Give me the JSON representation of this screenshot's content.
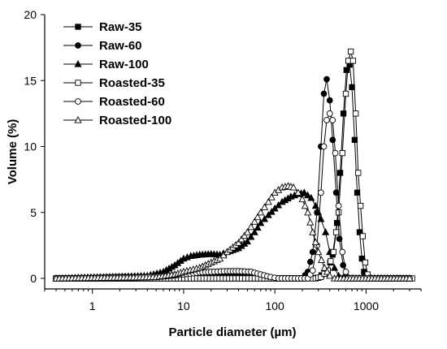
{
  "chart_data": {
    "type": "line",
    "xlabel": "Particle diameter (µm)",
    "ylabel": "Volume (%)",
    "xscale": "log",
    "xlim": [
      0.3,
      4000
    ],
    "ylim": [
      0,
      20
    ],
    "x_ticks": [
      {
        "value": 1,
        "label": "1"
      },
      {
        "value": 10,
        "label": "10"
      },
      {
        "value": 100,
        "label": "100"
      },
      {
        "value": 1000,
        "label": "1000"
      }
    ],
    "y_ticks": [
      {
        "value": 0,
        "label": "0"
      },
      {
        "value": 5,
        "label": "5"
      },
      {
        "value": 10,
        "label": "10"
      },
      {
        "value": 15,
        "label": "15"
      },
      {
        "value": 20,
        "label": "20"
      }
    ],
    "legend_position": "top-left",
    "grid": false,
    "series": [
      {
        "name": "Raw-35",
        "marker": "square-filled",
        "points": [
          [
            0.4,
            0
          ],
          [
            200,
            0
          ],
          [
            300,
            0.05
          ],
          [
            380,
            0.6
          ],
          [
            430,
            1.8
          ],
          [
            480,
            4.2
          ],
          [
            520,
            8
          ],
          [
            565,
            12.5
          ],
          [
            610,
            15.8
          ],
          [
            660,
            16.2
          ],
          [
            700,
            14.5
          ],
          [
            750,
            10.5
          ],
          [
            800,
            6.5
          ],
          [
            850,
            3.5
          ],
          [
            900,
            1.5
          ],
          [
            950,
            0.5
          ],
          [
            1000,
            0.1
          ],
          [
            1100,
            0
          ],
          [
            3000,
            0
          ]
        ]
      },
      {
        "name": "Raw-60",
        "marker": "circle-filled",
        "points": [
          [
            0.4,
            0
          ],
          [
            3,
            0
          ],
          [
            6,
            0.1
          ],
          [
            10,
            0.3
          ],
          [
            15,
            0.4
          ],
          [
            20,
            0.45
          ],
          [
            30,
            0.45
          ],
          [
            45,
            0.4
          ],
          [
            60,
            0.3
          ],
          [
            80,
            0.1
          ],
          [
            100,
            0
          ],
          [
            200,
            0
          ],
          [
            230,
            0.5
          ],
          [
            260,
            2
          ],
          [
            290,
            5
          ],
          [
            320,
            10
          ],
          [
            345,
            14
          ],
          [
            370,
            15.1
          ],
          [
            400,
            13.5
          ],
          [
            430,
            10.5
          ],
          [
            470,
            6.5
          ],
          [
            510,
            3
          ],
          [
            560,
            1
          ],
          [
            600,
            0.2
          ],
          [
            650,
            0
          ],
          [
            3000,
            0
          ]
        ]
      },
      {
        "name": "Raw-100",
        "marker": "triangle-filled",
        "points": [
          [
            0.4,
            0
          ],
          [
            4,
            0.2
          ],
          [
            6,
            0.5
          ],
          [
            8,
            1
          ],
          [
            10,
            1.5
          ],
          [
            12,
            1.7
          ],
          [
            15,
            1.8
          ],
          [
            20,
            1.85
          ],
          [
            25,
            1.8
          ],
          [
            30,
            2
          ],
          [
            40,
            2.3
          ],
          [
            50,
            2.8
          ],
          [
            60,
            3.5
          ],
          [
            70,
            4.2
          ],
          [
            85,
            4.8
          ],
          [
            100,
            5.3
          ],
          [
            120,
            5.8
          ],
          [
            150,
            6.2
          ],
          [
            180,
            6.4
          ],
          [
            210,
            6.5
          ],
          [
            250,
            6.1
          ],
          [
            280,
            5.5
          ],
          [
            320,
            4.5
          ],
          [
            360,
            3.5
          ],
          [
            400,
            2
          ],
          [
            450,
            0.8
          ],
          [
            500,
            0.2
          ],
          [
            550,
            0
          ],
          [
            3000,
            0
          ]
        ]
      },
      {
        "name": "Roasted-35",
        "marker": "square-open",
        "points": [
          [
            0.4,
            0
          ],
          [
            280,
            0
          ],
          [
            320,
            0.1
          ],
          [
            380,
            0.6
          ],
          [
            440,
            2
          ],
          [
            500,
            5
          ],
          [
            550,
            9.5
          ],
          [
            600,
            14
          ],
          [
            640,
            16.5
          ],
          [
            680,
            17.2
          ],
          [
            720,
            16.5
          ],
          [
            770,
            12.5
          ],
          [
            820,
            8
          ],
          [
            870,
            5.5
          ],
          [
            920,
            3.2
          ],
          [
            980,
            1.2
          ],
          [
            1040,
            0.3
          ],
          [
            1100,
            0
          ],
          [
            3200,
            0
          ]
        ]
      },
      {
        "name": "Roasted-60",
        "marker": "circle-open",
        "points": [
          [
            0.4,
            0
          ],
          [
            3,
            0.05
          ],
          [
            6,
            0.15
          ],
          [
            10,
            0.3
          ],
          [
            15,
            0.45
          ],
          [
            20,
            0.5
          ],
          [
            30,
            0.55
          ],
          [
            40,
            0.55
          ],
          [
            55,
            0.5
          ],
          [
            70,
            0.3
          ],
          [
            90,
            0.1
          ],
          [
            110,
            0
          ],
          [
            230,
            0
          ],
          [
            260,
            0.6
          ],
          [
            290,
            2.5
          ],
          [
            320,
            6.5
          ],
          [
            345,
            10
          ],
          [
            370,
            12
          ],
          [
            400,
            12.5
          ],
          [
            430,
            12
          ],
          [
            460,
            9.5
          ],
          [
            500,
            5.5
          ],
          [
            550,
            2
          ],
          [
            600,
            0.5
          ],
          [
            650,
            0
          ],
          [
            3000,
            0
          ]
        ]
      },
      {
        "name": "Roasted-100",
        "marker": "triangle-open",
        "points": [
          [
            0.4,
            0
          ],
          [
            5,
            0.1
          ],
          [
            8,
            0.3
          ],
          [
            10,
            0.5
          ],
          [
            15,
            0.8
          ],
          [
            20,
            1.2
          ],
          [
            25,
            1.5
          ],
          [
            30,
            2
          ],
          [
            40,
            2.7
          ],
          [
            50,
            3.5
          ],
          [
            60,
            4.3
          ],
          [
            70,
            5
          ],
          [
            85,
            5.8
          ],
          [
            100,
            6.5
          ],
          [
            120,
            6.9
          ],
          [
            140,
            7
          ],
          [
            160,
            6.9
          ],
          [
            180,
            6.5
          ],
          [
            200,
            6
          ],
          [
            230,
            5
          ],
          [
            260,
            3.5
          ],
          [
            300,
            2
          ],
          [
            350,
            0.8
          ],
          [
            400,
            0.2
          ],
          [
            450,
            0
          ],
          [
            3000,
            0
          ]
        ]
      }
    ]
  }
}
